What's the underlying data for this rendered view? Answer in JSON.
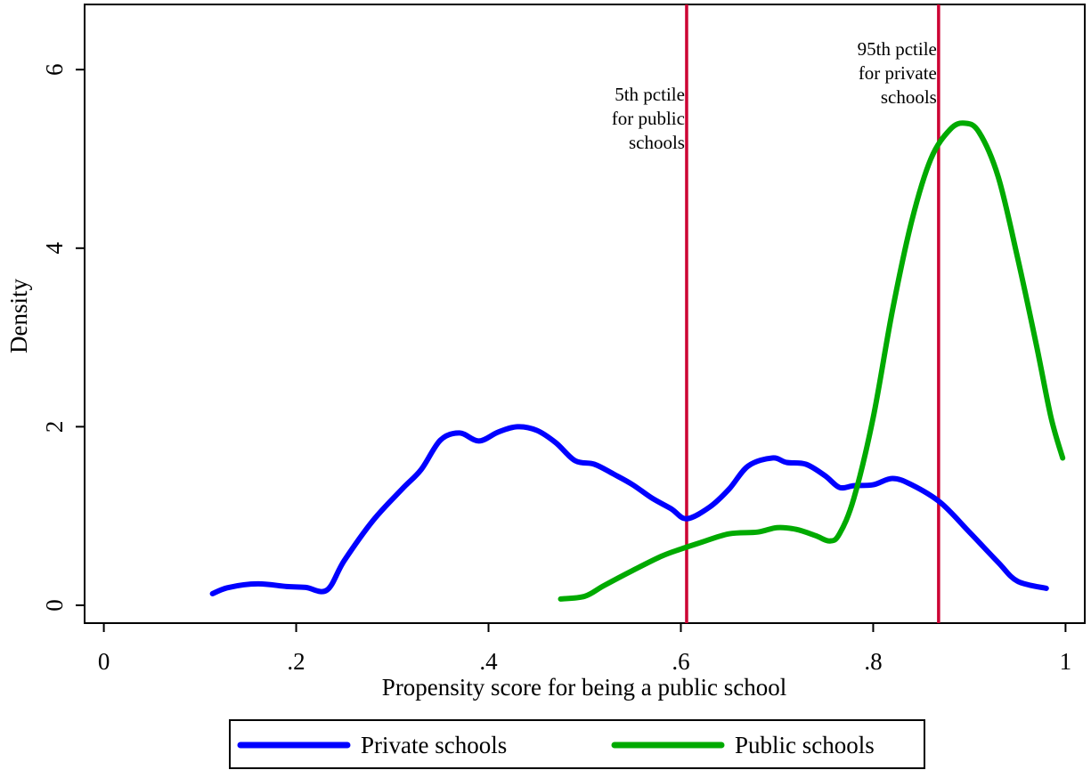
{
  "chart_data": {
    "type": "line",
    "title": "",
    "xlabel": "Propensity score for being a public school",
    "ylabel": "Density",
    "xlim": [
      -0.02,
      1.02
    ],
    "ylim": [
      -0.2,
      6.73
    ],
    "grid": false,
    "legend_position": "bottom",
    "x_ticks": [
      {
        "value": 0,
        "label": "0"
      },
      {
        "value": 0.2,
        "label": ".2"
      },
      {
        "value": 0.4,
        "label": ".4"
      },
      {
        "value": 0.6,
        "label": ".6"
      },
      {
        "value": 0.8,
        "label": ".8"
      },
      {
        "value": 1.0,
        "label": "1"
      }
    ],
    "y_ticks": [
      {
        "value": 0,
        "label": "0"
      },
      {
        "value": 2,
        "label": "2"
      },
      {
        "value": 4,
        "label": "4"
      },
      {
        "value": 6,
        "label": "6"
      }
    ],
    "series": [
      {
        "name": "Private schools",
        "color": "#0000ff",
        "points": [
          [
            0.113,
            0.13
          ],
          [
            0.13,
            0.2
          ],
          [
            0.16,
            0.24
          ],
          [
            0.19,
            0.21
          ],
          [
            0.21,
            0.2
          ],
          [
            0.232,
            0.17
          ],
          [
            0.25,
            0.5
          ],
          [
            0.28,
            0.95
          ],
          [
            0.31,
            1.3
          ],
          [
            0.33,
            1.52
          ],
          [
            0.35,
            1.85
          ],
          [
            0.37,
            1.93
          ],
          [
            0.39,
            1.84
          ],
          [
            0.41,
            1.94
          ],
          [
            0.43,
            2.0
          ],
          [
            0.45,
            1.96
          ],
          [
            0.47,
            1.82
          ],
          [
            0.49,
            1.62
          ],
          [
            0.51,
            1.58
          ],
          [
            0.53,
            1.47
          ],
          [
            0.55,
            1.35
          ],
          [
            0.57,
            1.2
          ],
          [
            0.59,
            1.08
          ],
          [
            0.606,
            0.97
          ],
          [
            0.63,
            1.1
          ],
          [
            0.65,
            1.3
          ],
          [
            0.67,
            1.56
          ],
          [
            0.695,
            1.65
          ],
          [
            0.71,
            1.6
          ],
          [
            0.73,
            1.58
          ],
          [
            0.75,
            1.45
          ],
          [
            0.765,
            1.32
          ],
          [
            0.78,
            1.34
          ],
          [
            0.8,
            1.35
          ],
          [
            0.82,
            1.42
          ],
          [
            0.84,
            1.35
          ],
          [
            0.87,
            1.15
          ],
          [
            0.9,
            0.82
          ],
          [
            0.93,
            0.48
          ],
          [
            0.95,
            0.27
          ],
          [
            0.98,
            0.19
          ]
        ]
      },
      {
        "name": "Public schools",
        "color": "#00aa00",
        "points": [
          [
            0.475,
            0.07
          ],
          [
            0.5,
            0.1
          ],
          [
            0.52,
            0.22
          ],
          [
            0.55,
            0.39
          ],
          [
            0.58,
            0.55
          ],
          [
            0.6,
            0.63
          ],
          [
            0.62,
            0.7
          ],
          [
            0.65,
            0.8
          ],
          [
            0.68,
            0.82
          ],
          [
            0.7,
            0.87
          ],
          [
            0.72,
            0.85
          ],
          [
            0.74,
            0.78
          ],
          [
            0.755,
            0.72
          ],
          [
            0.765,
            0.8
          ],
          [
            0.78,
            1.2
          ],
          [
            0.8,
            2.1
          ],
          [
            0.82,
            3.3
          ],
          [
            0.84,
            4.3
          ],
          [
            0.86,
            5.0
          ],
          [
            0.88,
            5.33
          ],
          [
            0.895,
            5.4
          ],
          [
            0.91,
            5.3
          ],
          [
            0.93,
            4.8
          ],
          [
            0.95,
            3.9
          ],
          [
            0.97,
            2.9
          ],
          [
            0.985,
            2.1
          ],
          [
            0.997,
            1.65
          ]
        ]
      }
    ],
    "reference_lines": [
      {
        "x": 0.606,
        "color": "#cc0033",
        "label": [
          "5th pctile",
          "for public",
          "schools"
        ]
      },
      {
        "x": 0.868,
        "color": "#cc0033",
        "label": [
          "95th pctile",
          "for private",
          "schools"
        ]
      }
    ]
  }
}
